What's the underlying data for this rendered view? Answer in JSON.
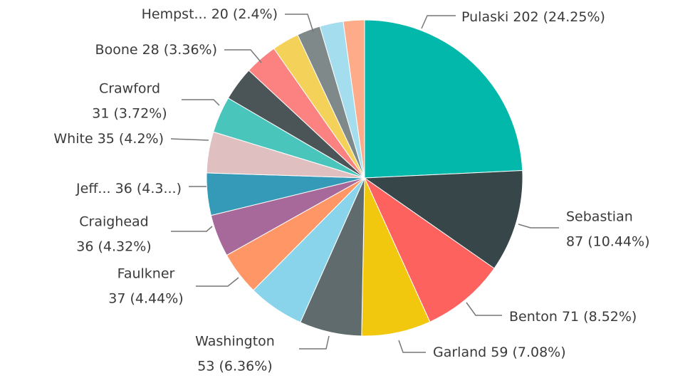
{
  "chart_data": {
    "type": "pie",
    "categories": [
      "Pulaski",
      "Sebastian",
      "Benton",
      "Garland",
      "Washington",
      null,
      "Faulkner",
      "Craighead",
      "Jeff...",
      "White",
      "Crawford",
      null,
      "Boone",
      null,
      "Hempst...",
      null,
      null
    ],
    "values": [
      202,
      87,
      71,
      59,
      53,
      48,
      37,
      36,
      36,
      35,
      31,
      29,
      28,
      23,
      20,
      20,
      18
    ],
    "value_labels": [
      "202 (24.25%)",
      "87 (10.44%)",
      "71 (8.52%)",
      "59 (7.08%)",
      "53 (6.36%)",
      null,
      "37 (4.44%)",
      "36 (4.32%)",
      "36 (4.3...)",
      "35 (4.2%)",
      "31 (3.72%)",
      null,
      "28 (3.36%)",
      null,
      "20 (2.4%)",
      null,
      null
    ],
    "colors": [
      "#01B8AA",
      "#374649",
      "#FD625E",
      "#F2C80F",
      "#5F6B6D",
      "#8AD4EB",
      "#FE9666",
      "#A66999",
      "#3599B8",
      "#DFBFBF",
      "#4AC5BB",
      "#4B5557",
      "#FB8281",
      "#F4D25A",
      "#7F898A",
      "#A4DDEE",
      "#FDAB89"
    ]
  }
}
